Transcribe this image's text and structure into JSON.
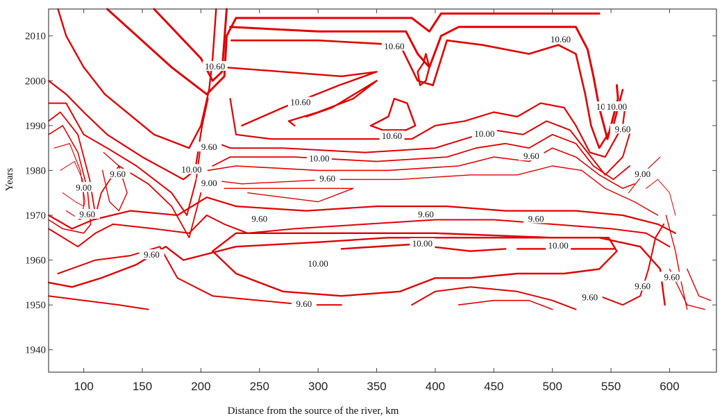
{
  "chart_data": {
    "type": "contour",
    "title": "",
    "xlabel": "Distance from the source of the river, km",
    "ylabel": "Years",
    "xlim": [
      70,
      640
    ],
    "ylim": [
      1935,
      2016
    ],
    "x_ticks": [
      100,
      150,
      200,
      250,
      300,
      350,
      400,
      450,
      500,
      550,
      600
    ],
    "y_ticks": [
      1940,
      1950,
      1960,
      1970,
      1980,
      1990,
      2000,
      2010
    ],
    "contour_labels": [
      {
        "text": "10.60",
        "x": 365,
        "y": 2007.5
      },
      {
        "text": "10.60",
        "x": 212,
        "y": 2003
      },
      {
        "text": "10.60",
        "x": 507,
        "y": 2009
      },
      {
        "text": "10.60",
        "x": 285,
        "y": 1995
      },
      {
        "text": "10.60",
        "x": 363,
        "y": 1987.5
      },
      {
        "text": "10.60",
        "x": 546,
        "y": 1994
      },
      {
        "text": "10.00",
        "x": 555,
        "y": 1994
      },
      {
        "text": "9.60",
        "x": 560,
        "y": 1989
      },
      {
        "text": "10.00",
        "x": 442,
        "y": 1988
      },
      {
        "text": "9.60",
        "x": 482,
        "y": 1983
      },
      {
        "text": "10.00",
        "x": 301,
        "y": 1982.5
      },
      {
        "text": "9.60",
        "x": 308,
        "y": 1978
      },
      {
        "text": "9.60",
        "x": 207,
        "y": 1985
      },
      {
        "text": "10.00",
        "x": 192,
        "y": 1980
      },
      {
        "text": "9.00",
        "x": 207,
        "y": 1977
      },
      {
        "text": "9.00",
        "x": 100,
        "y": 1976
      },
      {
        "text": "9.60",
        "x": 129,
        "y": 1979
      },
      {
        "text": "9.60",
        "x": 103,
        "y": 1970
      },
      {
        "text": "9.00",
        "x": 577,
        "y": 1979
      },
      {
        "text": "9.60",
        "x": 392,
        "y": 1970
      },
      {
        "text": "9.60",
        "x": 486,
        "y": 1969
      },
      {
        "text": "9.60",
        "x": 250,
        "y": 1969
      },
      {
        "text": "10.00",
        "x": 389,
        "y": 1963.5
      },
      {
        "text": "10.00",
        "x": 505,
        "y": 1963
      },
      {
        "text": "10.00",
        "x": 300,
        "y": 1959
      },
      {
        "text": "9.60",
        "x": 158,
        "y": 1961
      },
      {
        "text": "9.60",
        "x": 288,
        "y": 1950
      },
      {
        "text": "9.60",
        "x": 532,
        "y": 1951.5
      },
      {
        "text": "9.60",
        "x": 577,
        "y": 1954
      },
      {
        "text": "9.60",
        "x": 602,
        "y": 1956
      }
    ],
    "grid": false,
    "legend": "none"
  }
}
